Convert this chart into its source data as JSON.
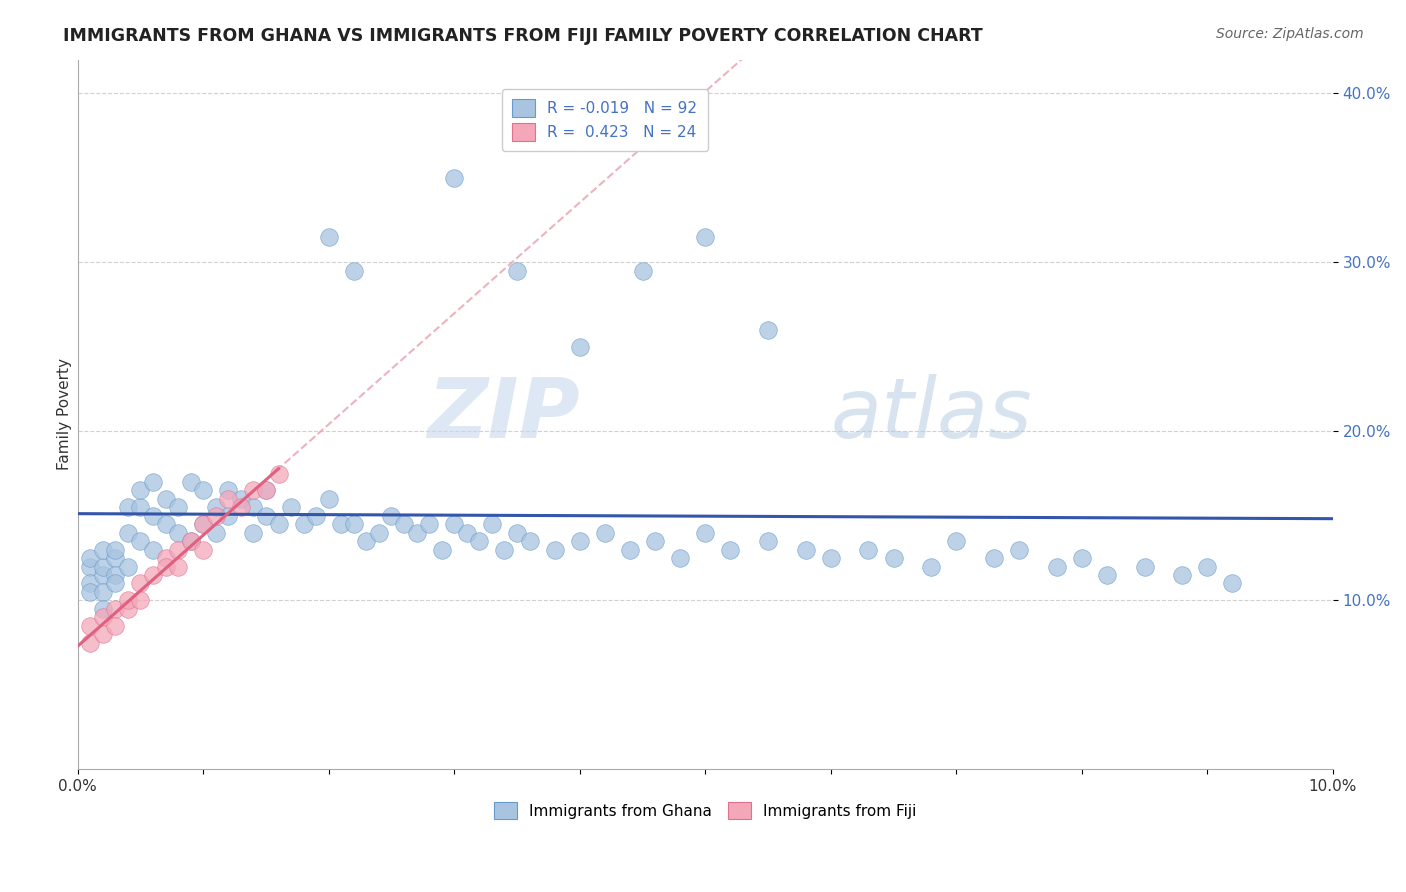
{
  "title": "IMMIGRANTS FROM GHANA VS IMMIGRANTS FROM FIJI FAMILY POVERTY CORRELATION CHART",
  "source": "Source: ZipAtlas.com",
  "ylabel": "Family Poverty",
  "xmin": 0.0,
  "xmax": 0.1,
  "ymin": 0.0,
  "ymax": 0.42,
  "yticks": [
    0.1,
    0.2,
    0.3,
    0.4
  ],
  "ghana_color": "#a8c4e0",
  "ghana_edge_color": "#6699cc",
  "fiji_color": "#f4a7b9",
  "fiji_edge_color": "#e07090",
  "ghana_line_color": "#3355aa",
  "fiji_line_color": "#e06080",
  "fiji_dash_color": "#e8a0b0",
  "watermark_zip_color": "#c8d8e8",
  "watermark_atlas_color": "#b8cce0",
  "legend_ghana_R": "-0.019",
  "legend_ghana_N": "92",
  "legend_fiji_R": "0.423",
  "legend_fiji_N": "24",
  "ghana_x": [
    0.001,
    0.001,
    0.001,
    0.001,
    0.002,
    0.002,
    0.002,
    0.002,
    0.002,
    0.003,
    0.003,
    0.003,
    0.003,
    0.004,
    0.004,
    0.004,
    0.005,
    0.005,
    0.005,
    0.006,
    0.006,
    0.006,
    0.007,
    0.007,
    0.008,
    0.008,
    0.009,
    0.009,
    0.01,
    0.01,
    0.011,
    0.011,
    0.012,
    0.012,
    0.013,
    0.014,
    0.014,
    0.015,
    0.015,
    0.016,
    0.017,
    0.018,
    0.019,
    0.02,
    0.021,
    0.022,
    0.023,
    0.024,
    0.025,
    0.026,
    0.027,
    0.028,
    0.029,
    0.03,
    0.031,
    0.032,
    0.033,
    0.034,
    0.035,
    0.036,
    0.038,
    0.04,
    0.042,
    0.044,
    0.046,
    0.048,
    0.05,
    0.052,
    0.055,
    0.058,
    0.06,
    0.063,
    0.065,
    0.068,
    0.07,
    0.073,
    0.075,
    0.078,
    0.08,
    0.082,
    0.085,
    0.088,
    0.09,
    0.092,
    0.02,
    0.022,
    0.03,
    0.035,
    0.04,
    0.045,
    0.05,
    0.055
  ],
  "ghana_y": [
    0.12,
    0.125,
    0.11,
    0.105,
    0.115,
    0.12,
    0.13,
    0.105,
    0.095,
    0.125,
    0.115,
    0.13,
    0.11,
    0.155,
    0.14,
    0.12,
    0.155,
    0.135,
    0.165,
    0.15,
    0.13,
    0.17,
    0.145,
    0.16,
    0.155,
    0.14,
    0.17,
    0.135,
    0.145,
    0.165,
    0.155,
    0.14,
    0.165,
    0.15,
    0.16,
    0.155,
    0.14,
    0.165,
    0.15,
    0.145,
    0.155,
    0.145,
    0.15,
    0.16,
    0.145,
    0.145,
    0.135,
    0.14,
    0.15,
    0.145,
    0.14,
    0.145,
    0.13,
    0.145,
    0.14,
    0.135,
    0.145,
    0.13,
    0.14,
    0.135,
    0.13,
    0.135,
    0.14,
    0.13,
    0.135,
    0.125,
    0.14,
    0.13,
    0.135,
    0.13,
    0.125,
    0.13,
    0.125,
    0.12,
    0.135,
    0.125,
    0.13,
    0.12,
    0.125,
    0.115,
    0.12,
    0.115,
    0.12,
    0.11,
    0.315,
    0.295,
    0.35,
    0.295,
    0.25,
    0.295,
    0.315,
    0.26
  ],
  "fiji_x": [
    0.001,
    0.001,
    0.002,
    0.002,
    0.003,
    0.003,
    0.004,
    0.004,
    0.005,
    0.005,
    0.006,
    0.007,
    0.007,
    0.008,
    0.008,
    0.009,
    0.01,
    0.01,
    0.011,
    0.012,
    0.013,
    0.014,
    0.015,
    0.016
  ],
  "fiji_y": [
    0.075,
    0.085,
    0.09,
    0.08,
    0.095,
    0.085,
    0.095,
    0.1,
    0.11,
    0.1,
    0.115,
    0.125,
    0.12,
    0.13,
    0.12,
    0.135,
    0.13,
    0.145,
    0.15,
    0.16,
    0.155,
    0.165,
    0.165,
    0.175
  ]
}
